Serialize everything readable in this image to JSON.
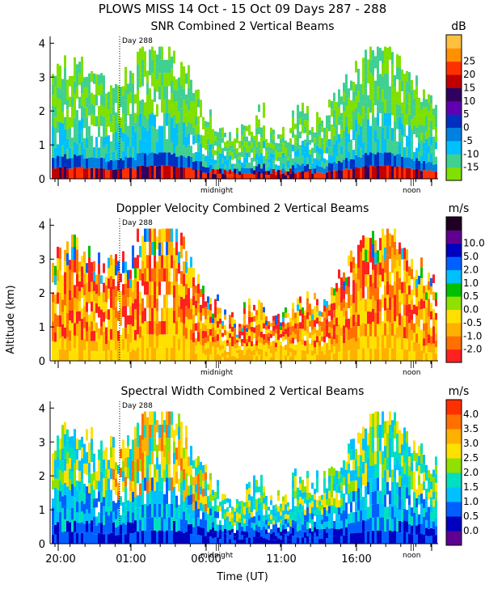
{
  "chart_data": {
    "type": "heatmap",
    "title": "PLOWS MISS  14 Oct - 15 Oct 09 Days 287 - 288",
    "xlabel": "Time (UT)",
    "ylabel": "Altitude (km)",
    "x_ticks": [
      "20:00",
      "01:00",
      "06:00",
      "11:00",
      "16:00"
    ],
    "y_ticks": [
      "0",
      "1",
      "2",
      "3",
      "4"
    ],
    "ylim": [
      0,
      4.2
    ],
    "annotations": {
      "day_marker": "Day 288",
      "midnight": "midnight",
      "noon": "noon",
      "split": "||"
    },
    "panels": [
      {
        "title": "SNR Combined 2 Vertical Beams",
        "unit": "dB",
        "colors": [
          "#80e000",
          "#40d090",
          "#00c0ff",
          "#0080e0",
          "#0030c0",
          "#6000b0",
          "#300060",
          "#c00000",
          "#ff3000",
          "#ff9000",
          "#ffc040"
        ],
        "legend": [
          "-15",
          "-10",
          "-5",
          "0",
          "5",
          "10",
          "15",
          "20",
          "25"
        ]
      },
      {
        "title": "Doppler Velocity Combined 2 Vertical Beams",
        "unit": "m/s",
        "colors": [
          "#ff2020",
          "#ff7000",
          "#ffb000",
          "#ffe000",
          "#90e000",
          "#00c000",
          "#00c0ff",
          "#0060ff",
          "#0000c0",
          "#600090",
          "#200020"
        ],
        "legend": [
          "-2.0",
          "-1.0",
          "-0.5",
          "0.0",
          "0.5",
          "1.0",
          "2.0",
          "5.0",
          "10.0"
        ]
      },
      {
        "title": "Spectral Width Combined 2 Vertical Beams",
        "unit": "m/s",
        "colors": [
          "#600090",
          "#0000c0",
          "#0060ff",
          "#00c0ff",
          "#00e0c0",
          "#90e000",
          "#ffe000",
          "#ffb000",
          "#ff7000",
          "#ff3000"
        ],
        "legend": [
          "0.0",
          "0.5",
          "1.0",
          "1.5",
          "2.0",
          "2.5",
          "3.0",
          "3.5",
          "4.0"
        ]
      }
    ]
  }
}
